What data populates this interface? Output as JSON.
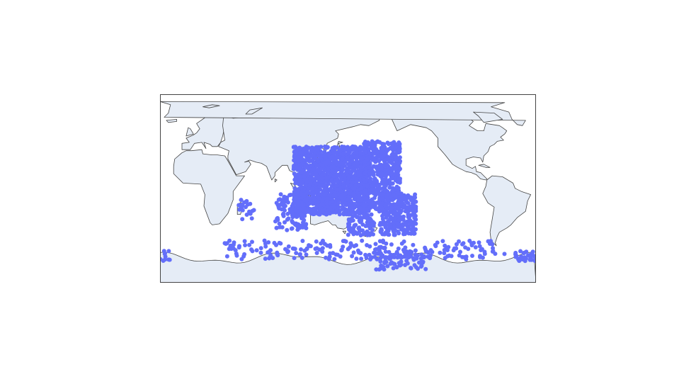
{
  "chart_data": {
    "type": "scattergeo",
    "projection": "equirectangular",
    "center_longitude": 150,
    "marker_color": "#636efa",
    "land_color": "#e5ecf6",
    "coastline_color": "#444444",
    "frame_color": "#444444",
    "title": "",
    "legend": "none",
    "clusters": [
      {
        "name": "west-pacific-core",
        "lon": [
          98,
          170
        ],
        "lat": [
          -25,
          40
        ],
        "count": 1400
      },
      {
        "name": "north-pacific-arc",
        "lon": [
          165,
          200
        ],
        "lat": [
          -20,
          45
        ],
        "count": 500
      },
      {
        "name": "central-pacific-band",
        "lon": [
          180,
          215
        ],
        "lat": [
          -45,
          -5
        ],
        "count": 300
      },
      {
        "name": "south-indian",
        "lon": [
          80,
          110
        ],
        "lat": [
          -40,
          -5
        ],
        "count": 120
      },
      {
        "name": "tasman-sea",
        "lon": [
          150,
          175
        ],
        "lat": [
          -45,
          -25
        ],
        "count": 80
      },
      {
        "name": "southern-ocean-belt",
        "lon": [
          30,
          300
        ],
        "lat": [
          -68,
          -50
        ],
        "count": 220
      },
      {
        "name": "ross-sea",
        "lon": [
          175,
          225
        ],
        "lat": [
          -78,
          -60
        ],
        "count": 90
      },
      {
        "name": "weddell-sea",
        "lon": [
          -50,
          -20
        ],
        "lat": [
          -70,
          -60
        ],
        "count": 40
      },
      {
        "name": "mozambique-channel",
        "lon": [
          45,
          60
        ],
        "lat": [
          -30,
          -10
        ],
        "count": 20
      }
    ]
  }
}
